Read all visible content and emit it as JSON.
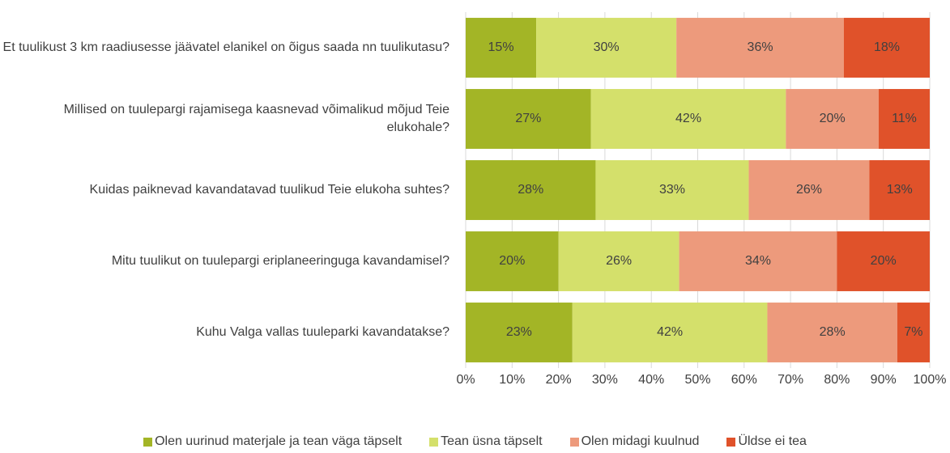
{
  "chart_data": {
    "type": "stacked_bar_horizontal",
    "categories": [
      "Et tuulikust 3 km raadiusesse jäävatel elanikel on õigus saada nn tuulikutasu?",
      "Millised on tuulepargi rajamisega kaasnevad võimalikud mõjud Teie elukohale?",
      "Kuidas paiknevad kavandatavad tuulikud Teie elukoha suhtes?",
      "Mitu tuulikut on tuulepargi eriplaneeringuga kavandamisel?",
      "Kuhu Valga vallas tuuleparki kavandatakse?"
    ],
    "series": [
      {
        "name": "Olen uurinud materjale ja tean väga täpselt",
        "color": "#a3b526",
        "values": [
          15.2,
          27,
          28,
          20,
          23
        ],
        "value_labels": [
          "15%",
          "27%",
          "28%",
          "20%",
          "23%"
        ]
      },
      {
        "name": "Tean üsna täpselt",
        "color": "#d4e06b",
        "values": [
          30.2,
          42,
          33,
          26,
          42
        ],
        "value_labels": [
          "30%",
          "42%",
          "33%",
          "26%",
          "42%"
        ]
      },
      {
        "name": "Olen midagi kuulnud",
        "color": "#ed9a7c",
        "values": [
          36.1,
          20,
          26,
          34,
          28
        ],
        "value_labels": [
          "36%",
          "20%",
          "26%",
          "34%",
          "28%"
        ]
      },
      {
        "name": "Üldse ei tea",
        "color": "#e0522a",
        "values": [
          18.5,
          11,
          13,
          20,
          7
        ],
        "value_labels": [
          "18%",
          "11%",
          "13%",
          "20%",
          "7%"
        ]
      }
    ],
    "xlim": [
      0,
      100
    ],
    "xticks": [
      {
        "value": 0,
        "label": "0%"
      },
      {
        "value": 10,
        "label": "10%"
      },
      {
        "value": 20,
        "label": "20%"
      },
      {
        "value": 30,
        "label": "30%"
      },
      {
        "value": 40,
        "label": "40%"
      },
      {
        "value": 50,
        "label": "50%"
      },
      {
        "value": 60,
        "label": "60%"
      },
      {
        "value": 70,
        "label": "70%"
      },
      {
        "value": 80,
        "label": "80%"
      },
      {
        "value": 90,
        "label": "90%"
      },
      {
        "value": 100,
        "label": "100%"
      }
    ],
    "grid": true,
    "legend": "bottom"
  }
}
